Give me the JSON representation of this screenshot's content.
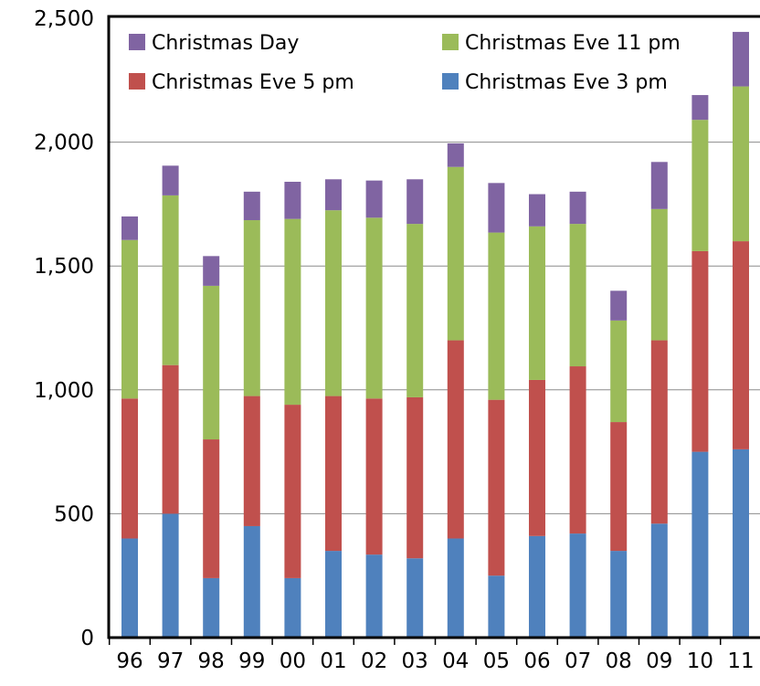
{
  "chart_data": {
    "type": "bar",
    "stacked": true,
    "categories": [
      "96",
      "97",
      "98",
      "99",
      "00",
      "01",
      "02",
      "03",
      "04",
      "05",
      "06",
      "07",
      "08",
      "09",
      "10",
      "11"
    ],
    "series": [
      {
        "name": "Christmas Eve 3 pm",
        "color": "#4f81bd",
        "values": [
          400,
          500,
          240,
          450,
          240,
          350,
          335,
          320,
          400,
          250,
          410,
          420,
          350,
          460,
          750,
          760
        ]
      },
      {
        "name": "Christmas Eve  5 pm",
        "color": "#c0504d",
        "values": [
          565,
          600,
          560,
          525,
          700,
          625,
          630,
          650,
          800,
          710,
          630,
          675,
          520,
          740,
          810,
          840
        ]
      },
      {
        "name": "Christmas Eve 11 pm",
        "color": "#9bbb59",
        "values": [
          640,
          685,
          620,
          710,
          750,
          750,
          730,
          700,
          700,
          675,
          620,
          575,
          410,
          530,
          530,
          625
        ]
      },
      {
        "name": "Christmas Day",
        "color": "#8064a2",
        "values": [
          95,
          120,
          120,
          115,
          150,
          125,
          150,
          180,
          95,
          200,
          130,
          130,
          120,
          190,
          100,
          220
        ]
      }
    ],
    "y_ticks": [
      "0",
      "500",
      "1,000",
      "1,500",
      "2,000",
      "2,500"
    ],
    "ylim": [
      0,
      2500
    ],
    "grid": true,
    "legend": {
      "placement": "top-left inside plot",
      "order": [
        "Christmas Day",
        "Christmas Eve 11 pm",
        "Christmas Eve  5 pm",
        "Christmas Eve 3 pm"
      ]
    }
  }
}
